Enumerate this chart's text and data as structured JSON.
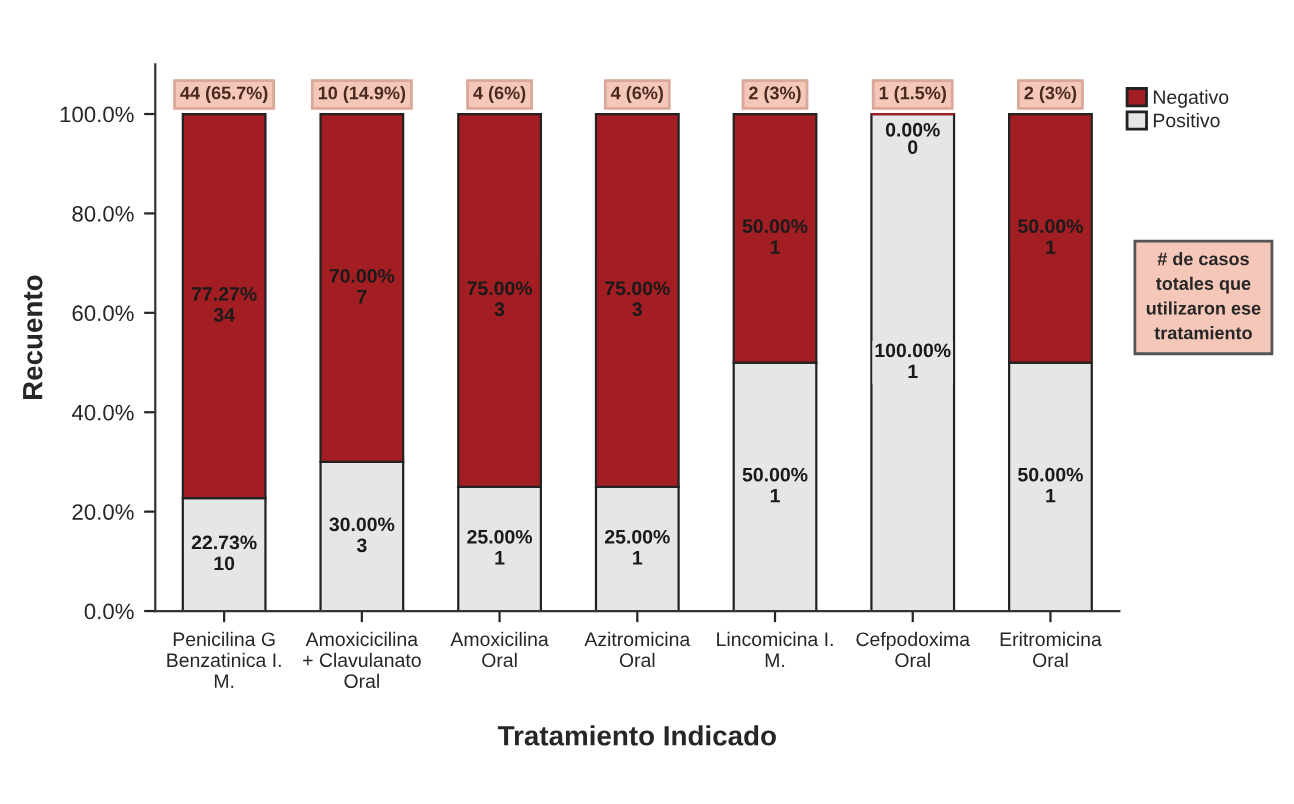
{
  "chart_data": {
    "type": "bar",
    "stacked": true,
    "xlabel": "Tratamiento Indicado",
    "ylabel": "Recuento",
    "categories": [
      "Penicilina G\nBenzatinica I.\nM.",
      "Amoxicicilina\n+ Clavulanato\nOral",
      "Amoxicilina\nOral",
      "Azitromicina\nOral",
      "Lincomicina I.\nM.",
      "Cefpodoxima\nOral",
      "Eritromicina\nOral"
    ],
    "series": [
      {
        "name": "Positivo",
        "color": "#e6e6e6",
        "values": [
          22.73,
          30,
          25,
          25,
          50,
          100,
          50
        ],
        "value_labels": [
          "22.73%\n10",
          "30.00%\n3",
          "25.00%\n1",
          "25.00%\n1",
          "50.00%\n1",
          "100.00%\n1",
          "50.00%\n1"
        ]
      },
      {
        "name": "Negativo",
        "color": "#a31e23",
        "values": [
          77.27,
          70,
          75,
          75,
          50,
          0,
          50
        ],
        "value_labels": [
          "77.27%\n34",
          "70.00%\n7",
          "75.00%\n3",
          "75.00%\n3",
          "50.00%\n1",
          "0.00%\n0",
          "50.00%\n1"
        ]
      }
    ],
    "totals": [
      "44 (65.7%)",
      "10 (14.9%)",
      "4 (6%)",
      "4 (6%)",
      "2 (3%)",
      "1 (1.5%)",
      "2 (3%)"
    ],
    "ylim": [
      0,
      110
    ],
    "yticks": [
      {
        "value": 0,
        "label": "0.0%"
      },
      {
        "value": 20,
        "label": "20.0%"
      },
      {
        "value": 40,
        "label": "40.0%"
      },
      {
        "value": 60,
        "label": "60.0%"
      },
      {
        "value": 80,
        "label": "80.0%"
      },
      {
        "value": 100,
        "label": "100.0%"
      }
    ],
    "legend": "top right",
    "annotations": [
      "# de casos\ntotales que\nutilizaron ese\ntratamiento"
    ]
  }
}
